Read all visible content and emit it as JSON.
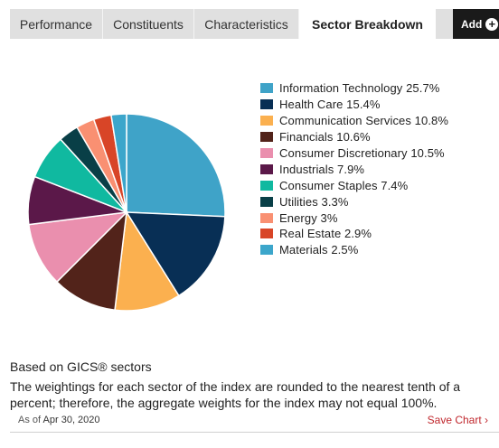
{
  "tabs": [
    {
      "label": "Performance",
      "active": false
    },
    {
      "label": "Constituents",
      "active": false
    },
    {
      "label": "Characteristics",
      "active": false
    },
    {
      "label": "Sector Breakdown",
      "active": true
    }
  ],
  "add_button": {
    "label": "Add",
    "icon": "plus-circle-icon"
  },
  "chart_data": {
    "type": "pie",
    "categories": [
      "Information Technology",
      "Health Care",
      "Communication Services",
      "Financials",
      "Consumer Discretionary",
      "Industrials",
      "Consumer Staples",
      "Utilities",
      "Energy",
      "Real Estate",
      "Materials"
    ],
    "values": [
      25.7,
      15.4,
      10.8,
      10.6,
      10.5,
      7.9,
      7.4,
      3.3,
      3,
      2.9,
      2.5
    ],
    "colors": [
      "#3fa3c8",
      "#082f55",
      "#fbb04f",
      "#52231a",
      "#ea8fae",
      "#5b1849",
      "#10b9a0",
      "#093f47",
      "#f99072",
      "#d84527",
      "#3ca6cb"
    ],
    "legend_labels": [
      "Information Technology 25.7%",
      "Health Care 15.4%",
      "Communication Services 10.8%",
      "Financials 10.6%",
      "Consumer Discretionary 10.5%",
      "Industrials 7.9%",
      "Consumer Staples 7.4%",
      "Utilities 3.3%",
      "Energy 3%",
      "Real Estate 2.9%",
      "Materials 2.5%"
    ],
    "legend_position": "right"
  },
  "note": {
    "title": "Based on GICS® sectors",
    "body": "The weightings for each sector of the index are rounded to the nearest tenth of a percent; therefore, the aggregate weights for the index may not equal 100%."
  },
  "as_of": {
    "prefix": "As of",
    "date": "Apr 30, 2020"
  },
  "save_chart": {
    "label": "Save Chart ›"
  }
}
